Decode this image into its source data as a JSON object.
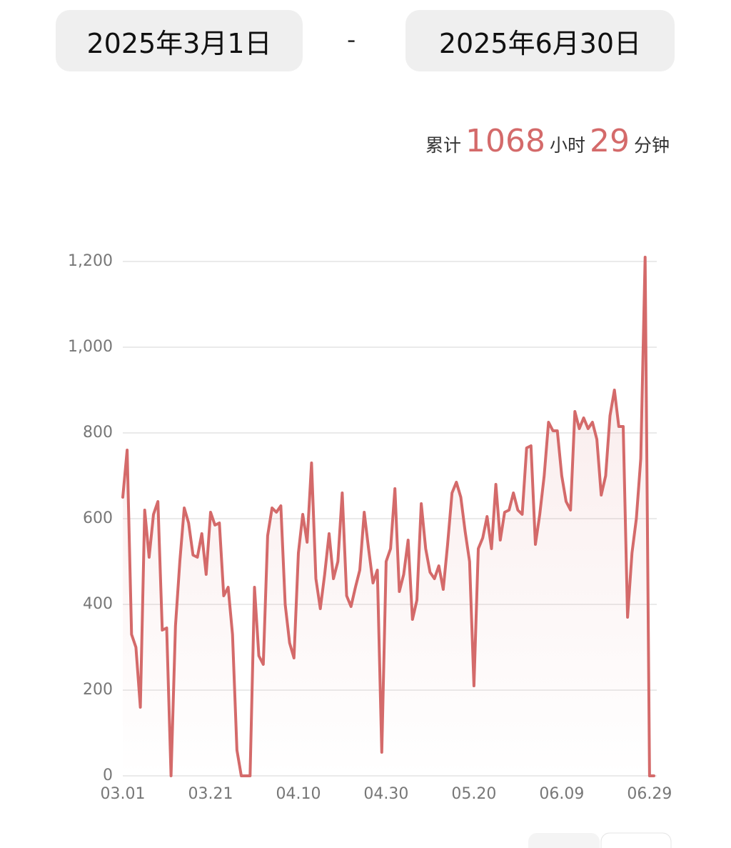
{
  "header": {
    "start_date": "2025年3月1日",
    "separator": "-",
    "end_date": "2025年6月30日"
  },
  "summary": {
    "prefix": "累计",
    "hours": "1068",
    "hours_unit": "小时",
    "minutes": "29",
    "minutes_unit": "分钟"
  },
  "chart_data": {
    "type": "line",
    "color": "#d46a6a",
    "grid": true,
    "categories": [
      "03.01",
      null,
      null,
      null,
      null,
      null,
      null,
      null,
      null,
      null,
      null,
      null,
      null,
      null,
      null,
      null,
      null,
      null,
      null,
      null,
      "03.21",
      null,
      null,
      null,
      null,
      null,
      null,
      null,
      null,
      null,
      null,
      null,
      null,
      null,
      null,
      null,
      null,
      null,
      null,
      null,
      "04.10",
      null,
      null,
      null,
      null,
      null,
      null,
      null,
      null,
      null,
      null,
      null,
      null,
      null,
      null,
      null,
      null,
      null,
      null,
      null,
      "04.30",
      null,
      null,
      null,
      null,
      null,
      null,
      null,
      null,
      null,
      null,
      null,
      null,
      null,
      null,
      null,
      null,
      null,
      null,
      null,
      "05.20",
      null,
      null,
      null,
      null,
      null,
      null,
      null,
      null,
      null,
      null,
      null,
      null,
      null,
      null,
      null,
      null,
      null,
      null,
      null,
      "06.09",
      null,
      null,
      null,
      null,
      null,
      null,
      null,
      null,
      null,
      null,
      null,
      null,
      null,
      null,
      null,
      null,
      null,
      null,
      null,
      "06.29",
      null
    ],
    "values": [
      650,
      760,
      330,
      300,
      160,
      620,
      510,
      610,
      640,
      340,
      345,
      0,
      350,
      500,
      625,
      590,
      515,
      510,
      565,
      470,
      615,
      585,
      590,
      420,
      440,
      330,
      60,
      0,
      0,
      0,
      440,
      280,
      260,
      560,
      625,
      615,
      630,
      400,
      310,
      275,
      520,
      610,
      545,
      730,
      460,
      390,
      470,
      565,
      460,
      500,
      660,
      420,
      395,
      440,
      480,
      615,
      530,
      450,
      480,
      55,
      500,
      530,
      670,
      430,
      470,
      550,
      365,
      410,
      635,
      530,
      475,
      460,
      490,
      435,
      540,
      660,
      685,
      650,
      570,
      500,
      210,
      530,
      555,
      605,
      530,
      680,
      550,
      615,
      620,
      660,
      620,
      610,
      765,
      770,
      540,
      610,
      700,
      825,
      805,
      805,
      700,
      640,
      620,
      850,
      810,
      835,
      810,
      825,
      785,
      655,
      700,
      840,
      900,
      815,
      815,
      370,
      520,
      600,
      740,
      1210,
      0,
      0
    ],
    "ylim": [
      0,
      1200
    ],
    "yticks": [
      0,
      200,
      400,
      600,
      800,
      {
        "value": 1000,
        "label": "1,000"
      },
      {
        "value": 1200,
        "label": "1,200"
      }
    ]
  }
}
